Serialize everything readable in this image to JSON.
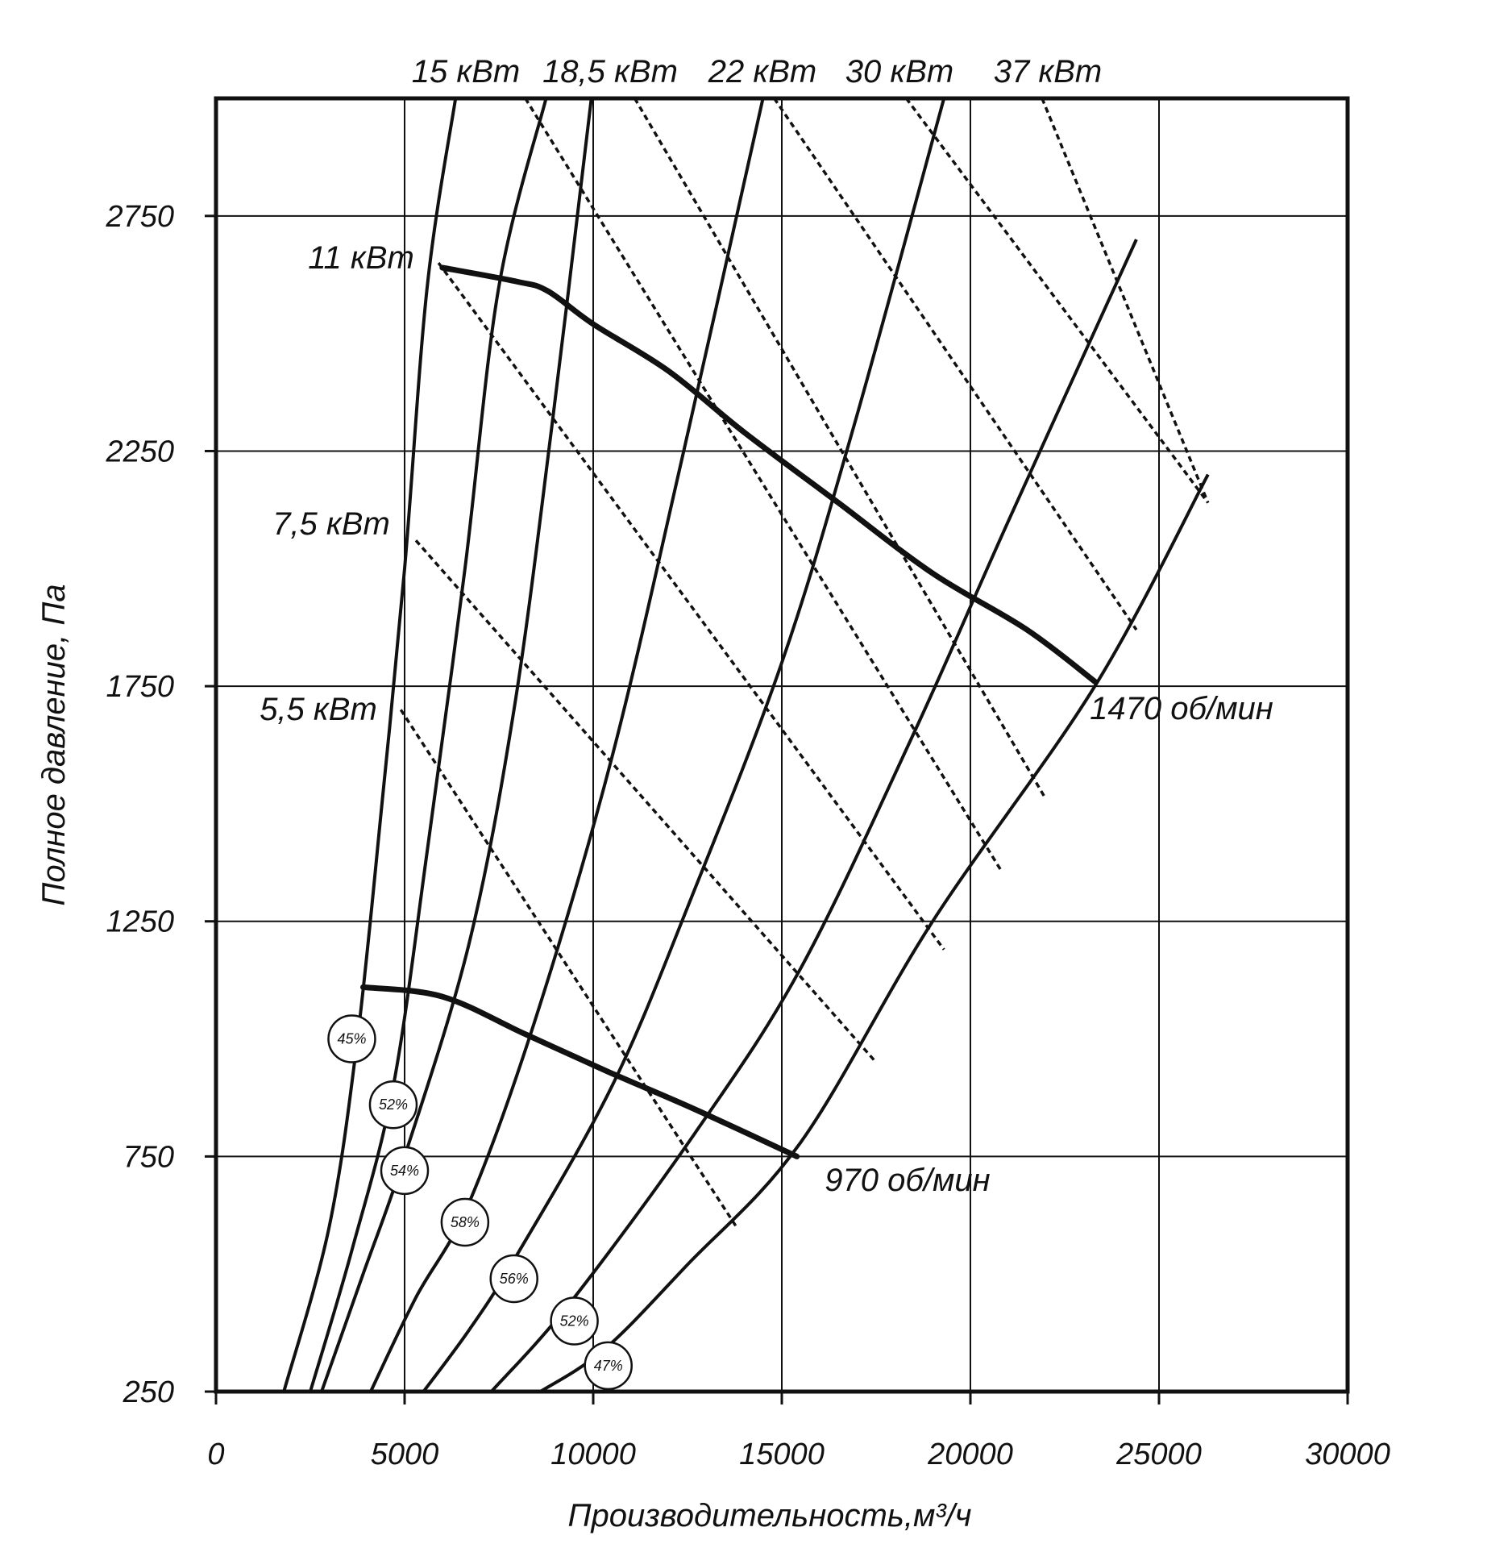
{
  "chart_data": {
    "type": "line",
    "title": "",
    "xlabel": "Производительность,м³/ч",
    "ylabel": "Полное давление, Па",
    "xlim": [
      0,
      30000
    ],
    "ylim": [
      250,
      3000
    ],
    "xticks": [
      0,
      5000,
      10000,
      15000,
      20000,
      25000,
      30000
    ],
    "xtick_labels": [
      "0",
      "5000",
      "10000",
      "15000",
      "20000",
      "25000",
      "30000"
    ],
    "yticks": [
      250,
      750,
      1250,
      1750,
      2250,
      2750
    ],
    "ytick_labels": [
      "250",
      "750",
      "1250",
      "1750",
      "2250",
      "2750"
    ],
    "grid": true,
    "system_curves": [
      {
        "name": "45%",
        "points": [
          [
            1800,
            250
          ],
          [
            3000,
            600
          ],
          [
            3750,
            1000
          ],
          [
            4400,
            1500
          ],
          [
            5000,
            2000
          ],
          [
            5600,
            2600
          ],
          [
            6350,
            3000
          ]
        ]
      },
      {
        "name": "52%",
        "points": [
          [
            2500,
            250
          ],
          [
            3600,
            550
          ],
          [
            4700,
            900
          ],
          [
            5600,
            1400
          ],
          [
            6600,
            2000
          ],
          [
            7500,
            2600
          ],
          [
            8750,
            3000
          ]
        ]
      },
      {
        "name": "54%",
        "points": [
          [
            2800,
            250
          ],
          [
            3900,
            500
          ],
          [
            5000,
            750
          ],
          [
            6700,
            1200
          ],
          [
            7900,
            1700
          ],
          [
            8900,
            2300
          ],
          [
            9950,
            3000
          ]
        ]
      },
      {
        "name": "58%",
        "points": [
          [
            4100,
            250
          ],
          [
            5300,
            450
          ],
          [
            6700,
            650
          ],
          [
            8500,
            1050
          ],
          [
            10500,
            1600
          ],
          [
            12400,
            2250
          ],
          [
            14500,
            3000
          ]
        ]
      },
      {
        "name": "56%",
        "points": [
          [
            5500,
            250
          ],
          [
            6700,
            380
          ],
          [
            7900,
            530
          ],
          [
            10500,
            900
          ],
          [
            12600,
            1300
          ],
          [
            15000,
            1800
          ],
          [
            16900,
            2300
          ],
          [
            19300,
            3000
          ]
        ]
      },
      {
        "name": "52%",
        "points": [
          [
            7300,
            250
          ],
          [
            9400,
            440
          ],
          [
            12700,
            800
          ],
          [
            15500,
            1150
          ],
          [
            18500,
            1650
          ],
          [
            21000,
            2100
          ],
          [
            24400,
            2700
          ]
        ]
      },
      {
        "name": "47%",
        "points": [
          [
            8600,
            250
          ],
          [
            10300,
            340
          ],
          [
            12500,
            520
          ],
          [
            15500,
            780
          ],
          [
            19000,
            1250
          ],
          [
            23300,
            1750
          ],
          [
            26300,
            2200
          ]
        ]
      }
    ],
    "power_lines": [
      {
        "name": "5,5 кВт",
        "points": [
          [
            4900,
            1700
          ],
          [
            13800,
            600
          ]
        ]
      },
      {
        "name": "7,5 кВт",
        "points": [
          [
            5300,
            2060
          ],
          [
            17500,
            950
          ]
        ]
      },
      {
        "name": "11 кВт",
        "points": [
          [
            5900,
            2650
          ],
          [
            19300,
            1190
          ]
        ]
      },
      {
        "name": "15 кВт",
        "points": [
          [
            8200,
            3000
          ],
          [
            20800,
            1360
          ]
        ]
      },
      {
        "name": "18,5 кВт",
        "points": [
          [
            11100,
            3000
          ],
          [
            22000,
            1510
          ]
        ]
      },
      {
        "name": "22 кВт",
        "points": [
          [
            14800,
            3000
          ],
          [
            24400,
            1870
          ]
        ]
      },
      {
        "name": "30 кВт",
        "points": [
          [
            18300,
            3000
          ],
          [
            26300,
            2140
          ]
        ]
      },
      {
        "name": "37 кВт",
        "points": [
          [
            21900,
            3000
          ],
          [
            26300,
            2140
          ]
        ]
      }
    ],
    "fan_curves": [
      {
        "name": "1470 об/мин",
        "points": [
          [
            6000,
            2640
          ],
          [
            8000,
            2610
          ],
          [
            8800,
            2590
          ],
          [
            10000,
            2520
          ],
          [
            12000,
            2420
          ],
          [
            14000,
            2290
          ],
          [
            16500,
            2140
          ],
          [
            19000,
            1990
          ],
          [
            21500,
            1870
          ],
          [
            23300,
            1760
          ]
        ]
      },
      {
        "name": "970 об/мин",
        "points": [
          [
            3900,
            1110
          ],
          [
            6000,
            1090
          ],
          [
            8200,
            1010
          ],
          [
            10400,
            930
          ],
          [
            12700,
            850
          ],
          [
            15400,
            750
          ]
        ]
      }
    ],
    "annotations": {
      "power_top": [
        "15 кВт",
        "18,5 кВт",
        "22 кВт",
        "30 кВт",
        "37 кВт"
      ],
      "power_left": [
        "11 кВт",
        "7,5 кВт",
        "5,5 кВт"
      ],
      "speed": [
        "1470 об/мин",
        "970 об/мин"
      ],
      "efficiency": [
        {
          "label": "45%",
          "x": 3600,
          "y": 1000
        },
        {
          "label": "52%",
          "x": 4700,
          "y": 860
        },
        {
          "label": "54%",
          "x": 5000,
          "y": 720
        },
        {
          "label": "58%",
          "x": 6600,
          "y": 610
        },
        {
          "label": "56%",
          "x": 7900,
          "y": 490
        },
        {
          "label": "52%",
          "x": 9500,
          "y": 400
        },
        {
          "label": "47%",
          "x": 10400,
          "y": 305
        }
      ]
    }
  }
}
